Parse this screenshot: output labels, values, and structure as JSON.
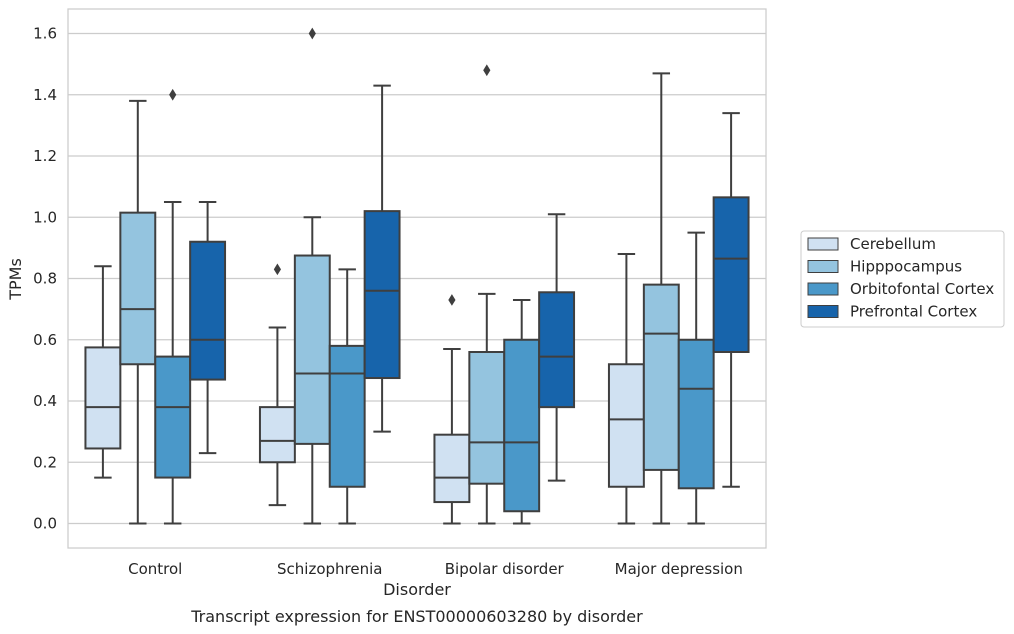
{
  "chart_data": {
    "type": "box",
    "xlabel": "Disorder",
    "ylabel": "TPMs",
    "caption": "Transcript expression for ENST00000603280 by disorder",
    "ylim": [
      -0.08,
      1.68
    ],
    "yticks": [
      "0.0",
      "0.2",
      "0.4",
      "0.6",
      "0.8",
      "1.0",
      "1.2",
      "1.4",
      "1.6"
    ],
    "grid": "horizontal",
    "legend_position": "right",
    "categories": [
      "Control",
      "Schizophrenia",
      "Bipolar disorder",
      "Major depression"
    ],
    "series": [
      {
        "name": "Cerebellum",
        "color": "#d0e1f2",
        "boxes": [
          {
            "whislo": 0.15,
            "q1": 0.245,
            "med": 0.38,
            "q3": 0.575,
            "whishi": 0.84,
            "fliers": []
          },
          {
            "whislo": 0.06,
            "q1": 0.2,
            "med": 0.27,
            "q3": 0.38,
            "whishi": 0.64,
            "fliers": [
              0.83
            ]
          },
          {
            "whislo": 0.0,
            "q1": 0.07,
            "med": 0.15,
            "q3": 0.29,
            "whishi": 0.57,
            "fliers": [
              0.73
            ]
          },
          {
            "whislo": 0.0,
            "q1": 0.12,
            "med": 0.34,
            "q3": 0.52,
            "whishi": 0.88,
            "fliers": []
          }
        ]
      },
      {
        "name": "Hipppocampus",
        "color": "#94c4df",
        "boxes": [
          {
            "whislo": 0.0,
            "q1": 0.52,
            "med": 0.7,
            "q3": 1.015,
            "whishi": 1.38,
            "fliers": []
          },
          {
            "whislo": 0.0,
            "q1": 0.26,
            "med": 0.49,
            "q3": 0.875,
            "whishi": 1.0,
            "fliers": [
              1.6
            ]
          },
          {
            "whislo": 0.0,
            "q1": 0.13,
            "med": 0.265,
            "q3": 0.56,
            "whishi": 0.75,
            "fliers": [
              1.48
            ]
          },
          {
            "whislo": 0.0,
            "q1": 0.175,
            "med": 0.62,
            "q3": 0.78,
            "whishi": 1.47,
            "fliers": []
          }
        ]
      },
      {
        "name": "Orbitofontal Cortex",
        "color": "#4a98c9",
        "boxes": [
          {
            "whislo": 0.0,
            "q1": 0.15,
            "med": 0.38,
            "q3": 0.545,
            "whishi": 1.05,
            "fliers": [
              1.4
            ]
          },
          {
            "whislo": 0.0,
            "q1": 0.12,
            "med": 0.49,
            "q3": 0.58,
            "whishi": 0.83,
            "fliers": []
          },
          {
            "whislo": 0.0,
            "q1": 0.04,
            "med": 0.265,
            "q3": 0.6,
            "whishi": 0.73,
            "fliers": []
          },
          {
            "whislo": 0.0,
            "q1": 0.115,
            "med": 0.44,
            "q3": 0.6,
            "whishi": 0.95,
            "fliers": []
          }
        ]
      },
      {
        "name": "Prefrontal Cortex",
        "color": "#1764ab",
        "boxes": [
          {
            "whislo": 0.23,
            "q1": 0.47,
            "med": 0.6,
            "q3": 0.92,
            "whishi": 1.05,
            "fliers": []
          },
          {
            "whislo": 0.3,
            "q1": 0.475,
            "med": 0.76,
            "q3": 1.02,
            "whishi": 1.43,
            "fliers": []
          },
          {
            "whislo": 0.14,
            "q1": 0.38,
            "med": 0.545,
            "q3": 0.755,
            "whishi": 1.01,
            "fliers": []
          },
          {
            "whislo": 0.12,
            "q1": 0.56,
            "med": 0.865,
            "q3": 1.065,
            "whishi": 1.34,
            "fliers": []
          }
        ]
      }
    ]
  }
}
